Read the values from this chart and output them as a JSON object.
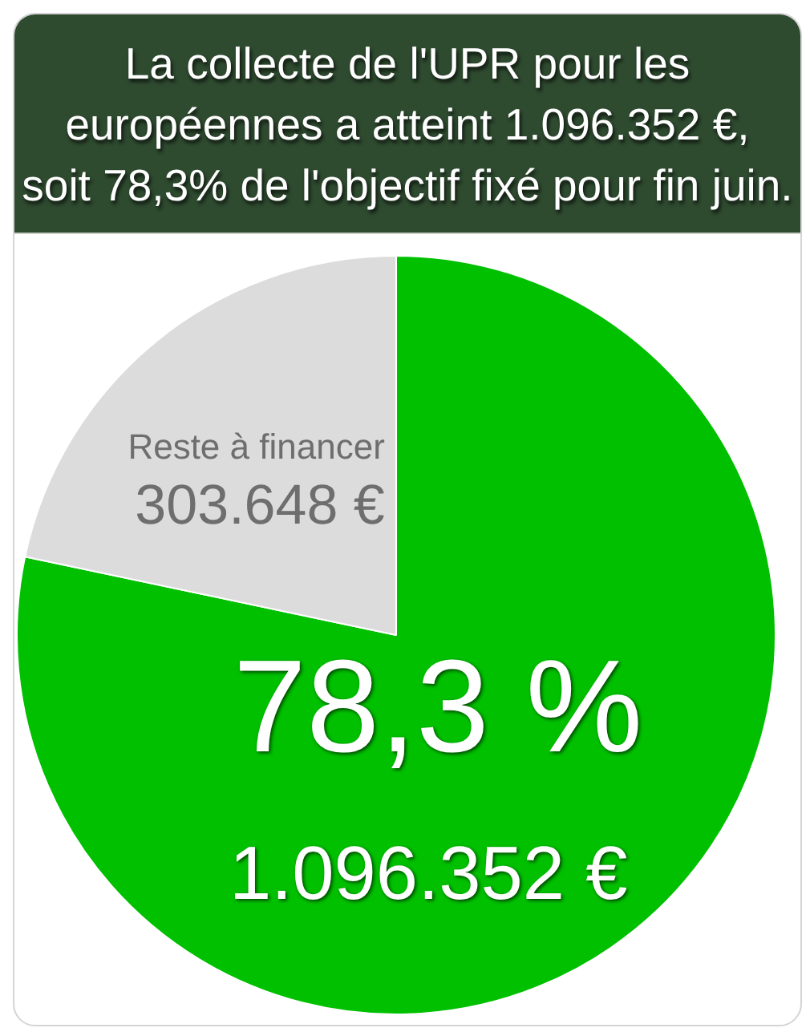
{
  "chart_data": {
    "type": "pie",
    "title": "La collecte de l'UPR pour les\neuropéennes a atteint 1.096.352 €,\nsoit 78,3% de l'objectif fixé pour fin juin.",
    "categories": [
      null,
      "Reste à financer"
    ],
    "values": [
      1096352,
      303648
    ],
    "colors": [
      "#00c000",
      "#dcdcdc"
    ],
    "value_labels": [
      "1.096.352 €",
      "303.648 €"
    ],
    "annotations": [
      "78,3 %"
    ]
  }
}
